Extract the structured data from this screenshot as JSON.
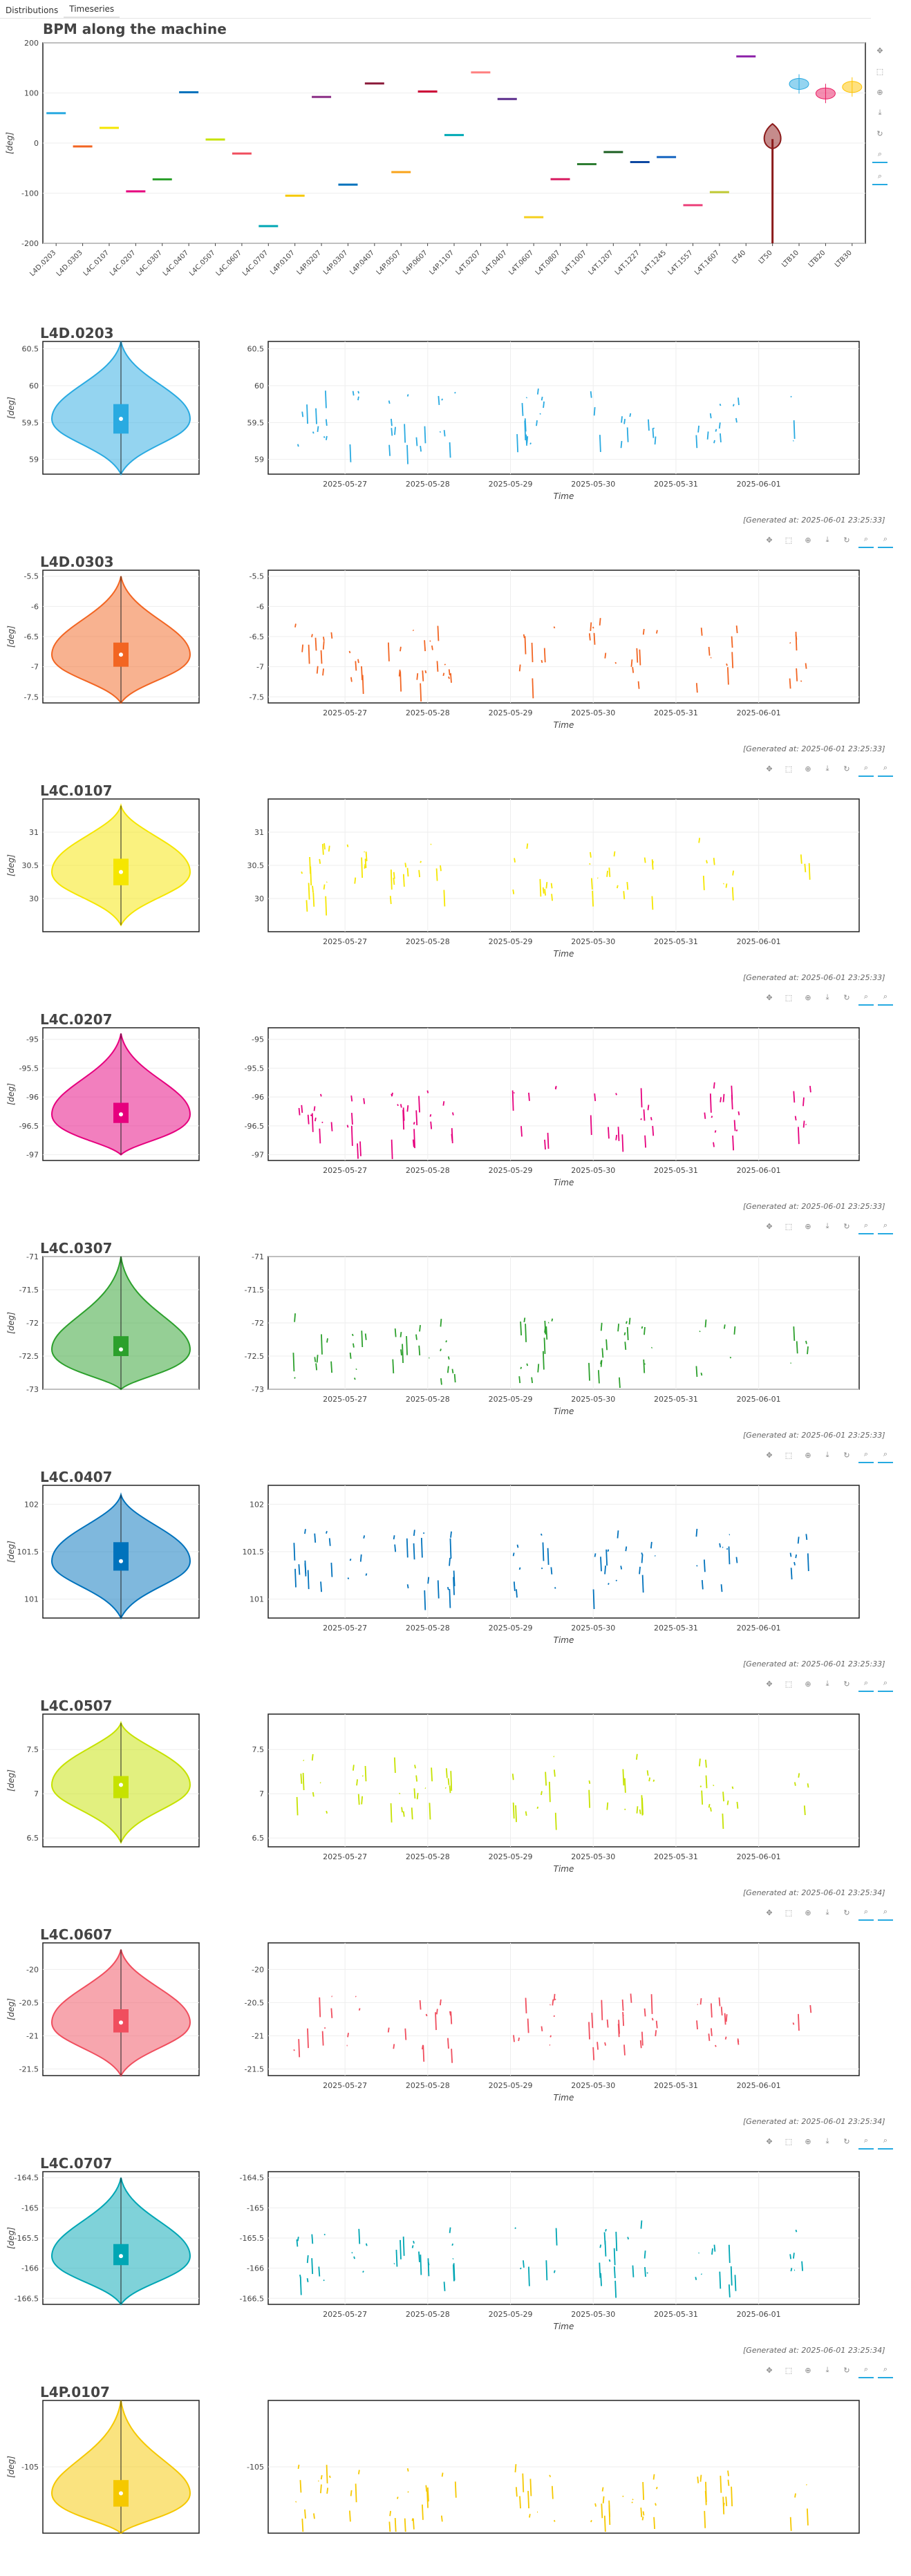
{
  "tabs": [
    {
      "label": "Distributions"
    },
    {
      "label": "Timeseries",
      "active": true
    }
  ],
  "main": {
    "title": "BPM along the machine",
    "ylabel": "[deg]"
  },
  "icons": {
    "pan": "pan-icon",
    "box_zoom": "box-zoom-icon",
    "wheel_zoom": "wheel-zoom-icon",
    "save": "save-icon",
    "reset": "reset-icon",
    "hover": "hover-icon",
    "hover2": "hover2-icon"
  },
  "chart_data": [
    {
      "type": "violin",
      "title": "BPM along the machine",
      "ylabel": "[deg]",
      "ylim": [
        -200,
        200
      ],
      "yticks": [
        -200,
        -100,
        0,
        100,
        200
      ],
      "grid": true,
      "categories": [
        "L4D.0203",
        "L4D.0303",
        "L4C.0107",
        "L4C.0207",
        "L4C.0307",
        "L4C.0407",
        "L4C.0507",
        "L4C.0607",
        "L4C.0707",
        "L4P.0107",
        "L4P.0207",
        "L4P.0307",
        "L4P.0407",
        "L4P.0507",
        "L4P.0607",
        "L4P.1107",
        "L4T.0207",
        "L4T.0407",
        "L4T.0607",
        "L4T.0807",
        "L4T.1007",
        "L4T.1207",
        "L4T.1227",
        "L4T.1245",
        "L4T.1557",
        "L4T.1607",
        "LT40",
        "LT50",
        "LTB10",
        "LTB20",
        "LTB30"
      ],
      "colors": [
        "#29aae1",
        "#f26522",
        "#f5e600",
        "#e6007e",
        "#2ca02c",
        "#0072bc",
        "#c6e200",
        "#f04e5e",
        "#00a6b4",
        "#f5c800",
        "#8b2e86",
        "#0072bc",
        "#8b1a3a",
        "#f9a31a",
        "#cc0033",
        "#00aab5",
        "#ff8080",
        "#5b2d8c",
        "#f5d020",
        "#d81b60",
        "#2e7d32",
        "#1b5e20",
        "#0d47a1",
        "#1565c0",
        "#ec407a",
        "#c0ca33",
        "#8e24aa",
        "#8b1a1a",
        "#29aae1",
        "#e91e63",
        "#ffc400"
      ],
      "values": [
        59.6,
        -6.8,
        30.4,
        -96.3,
        -72.4,
        101.4,
        7.1,
        -20.8,
        -165.7,
        -105,
        92,
        -83,
        119,
        -58,
        103,
        16,
        141,
        88,
        -148,
        -72,
        -42,
        -18,
        -38,
        -28,
        -124,
        -98,
        173,
        8,
        118,
        99,
        112
      ]
    },
    {
      "type": "violin+line",
      "title": "L4D.0203",
      "ylabel": "[deg]",
      "xlabel": "Time",
      "color": "#29aae1",
      "ylim": [
        58.8,
        60.6
      ],
      "yticks": [
        59,
        59.5,
        60,
        60.5
      ],
      "violin_center": 59.55,
      "box": [
        59.35,
        59.75
      ],
      "whiskers": [
        58.8,
        60.6
      ],
      "x_ticks": [
        "2025-05-27",
        "2025-05-28",
        "2025-05-29",
        "2025-05-30",
        "2025-05-31",
        "2025-06-01"
      ],
      "generated": "[Generated at: 2025-06-01 23:25:33]"
    },
    {
      "type": "violin+line",
      "title": "L4D.0303",
      "ylabel": "[deg]",
      "xlabel": "Time",
      "color": "#f26522",
      "ylim": [
        -7.6,
        -5.4
      ],
      "yticks": [
        -7.5,
        -7,
        -6.5,
        -6,
        -5.5
      ],
      "violin_center": -6.8,
      "box": [
        -7.0,
        -6.6
      ],
      "whiskers": [
        -7.6,
        -5.5
      ],
      "x_ticks": [
        "2025-05-27",
        "2025-05-28",
        "2025-05-29",
        "2025-05-30",
        "2025-05-31",
        "2025-06-01"
      ],
      "generated": "[Generated at: 2025-06-01 23:25:33]"
    },
    {
      "type": "violin+line",
      "title": "L4C.0107",
      "ylabel": "[deg]",
      "xlabel": "Time",
      "color": "#f5e600",
      "ylim": [
        29.5,
        31.5
      ],
      "yticks": [
        30,
        30.5,
        31
      ],
      "violin_center": 30.4,
      "box": [
        30.2,
        30.6
      ],
      "whiskers": [
        29.6,
        31.4
      ],
      "x_ticks": [
        "2025-05-27",
        "2025-05-28",
        "2025-05-29",
        "2025-05-30",
        "2025-05-31",
        "2025-06-01"
      ],
      "generated": "[Generated at: 2025-06-01 23:25:33]"
    },
    {
      "type": "violin+line",
      "title": "L4C.0207",
      "ylabel": "[deg]",
      "xlabel": "Time",
      "color": "#e6007e",
      "ylim": [
        -97.1,
        -94.8
      ],
      "yticks": [
        -97,
        -96.5,
        -96,
        -95.5,
        -95
      ],
      "violin_center": -96.3,
      "box": [
        -96.45,
        -96.1
      ],
      "whiskers": [
        -97,
        -94.9
      ],
      "x_ticks": [
        "2025-05-27",
        "2025-05-28",
        "2025-05-29",
        "2025-05-30",
        "2025-05-31",
        "2025-06-01"
      ],
      "generated": "[Generated at: 2025-06-01 23:25:33]"
    },
    {
      "type": "violin+line",
      "title": "L4C.0307",
      "ylabel": "[deg]",
      "xlabel": "Time",
      "color": "#2ca02c",
      "ylim": [
        -73,
        -71
      ],
      "yticks": [
        -73,
        -72.5,
        -72,
        -71.5,
        -71
      ],
      "violin_center": -72.4,
      "box": [
        -72.5,
        -72.2
      ],
      "whiskers": [
        -73,
        -71
      ],
      "x_ticks": [
        "2025-05-27",
        "2025-05-28",
        "2025-05-29",
        "2025-05-30",
        "2025-05-31",
        "2025-06-01"
      ],
      "generated": "[Generated at: 2025-06-01 23:25:33]"
    },
    {
      "type": "violin+line",
      "title": "L4C.0407",
      "ylabel": "[deg]",
      "xlabel": "Time",
      "color": "#0072bc",
      "ylim": [
        100.8,
        102.2
      ],
      "yticks": [
        101,
        101.5,
        102
      ],
      "violin_center": 101.4,
      "box": [
        101.3,
        101.6
      ],
      "whiskers": [
        100.8,
        102.1
      ],
      "x_ticks": [
        "2025-05-27",
        "2025-05-28",
        "2025-05-29",
        "2025-05-30",
        "2025-05-31",
        "2025-06-01"
      ],
      "generated": "[Generated at: 2025-06-01 23:25:33]"
    },
    {
      "type": "violin+line",
      "title": "L4C.0507",
      "ylabel": "[deg]",
      "xlabel": "Time",
      "color": "#c6e200",
      "ylim": [
        6.4,
        7.9
      ],
      "yticks": [
        6.5,
        7,
        7.5
      ],
      "violin_center": 7.1,
      "box": [
        6.95,
        7.2
      ],
      "whiskers": [
        6.45,
        7.8
      ],
      "x_ticks": [
        "2025-05-27",
        "2025-05-28",
        "2025-05-29",
        "2025-05-30",
        "2025-05-31",
        "2025-06-01"
      ],
      "generated": "[Generated at: 2025-06-01 23:25:34]"
    },
    {
      "type": "violin+line",
      "title": "L4C.0607",
      "ylabel": "[deg]",
      "xlabel": "Time",
      "color": "#f04e5e",
      "ylim": [
        -21.6,
        -19.6
      ],
      "yticks": [
        -21.5,
        -21,
        -20.5,
        -20
      ],
      "violin_center": -20.8,
      "box": [
        -20.95,
        -20.6
      ],
      "whiskers": [
        -21.6,
        -19.7
      ],
      "x_ticks": [
        "2025-05-27",
        "2025-05-28",
        "2025-05-29",
        "2025-05-30",
        "2025-05-31",
        "2025-06-01"
      ],
      "generated": "[Generated at: 2025-06-01 23:25:34]"
    },
    {
      "type": "violin+line",
      "title": "L4C.0707",
      "ylabel": "[deg]",
      "xlabel": "Time",
      "color": "#00a6b4",
      "ylim": [
        -166.6,
        -164.4
      ],
      "yticks": [
        -166.5,
        -166,
        -165.5,
        -165,
        -164.5
      ],
      "violin_center": -165.8,
      "box": [
        -165.95,
        -165.6
      ],
      "whiskers": [
        -166.6,
        -164.5
      ],
      "x_ticks": [
        "2025-05-27",
        "2025-05-28",
        "2025-05-29",
        "2025-05-30",
        "2025-05-31",
        "2025-06-01"
      ],
      "generated": "[Generated at: 2025-06-01 23:25:34]"
    },
    {
      "type": "violin+line",
      "title": "L4P.0107",
      "ylabel": "[deg]",
      "xlabel": "Time",
      "color": "#f5c800",
      "ylim": [
        -105.5,
        -104.5
      ],
      "yticks": [
        -105
      ],
      "violin_center": -105.2,
      "box": [
        -105.3,
        -105.1
      ],
      "whiskers": [
        -105.5,
        -104.5
      ],
      "x_ticks": [],
      "generated": ""
    }
  ]
}
